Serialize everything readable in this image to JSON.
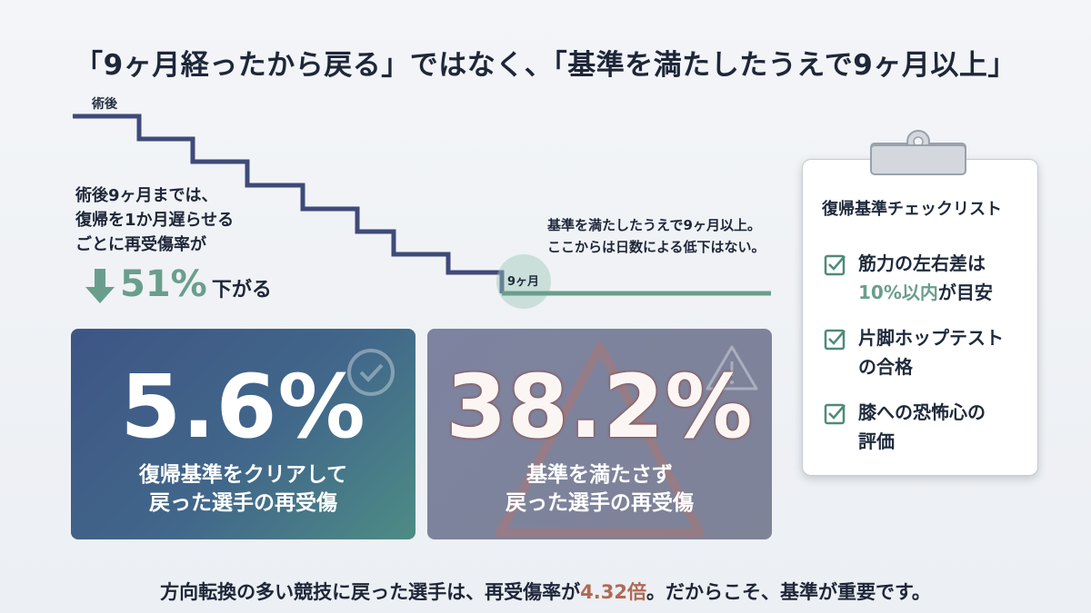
{
  "title": "「9ヶ月経ったから戻る」ではなく、「基準を満たしたうえで9ヶ月以上」",
  "timeline": {
    "start_label": "術後",
    "milestone_label": "9ヶ月"
  },
  "left_note": {
    "lines": [
      "術後9ヶ月までは、",
      "復帰を1か月遅らせる",
      "ごとに再受傷率が"
    ],
    "stat": "51%",
    "stat_suffix": "下がる"
  },
  "right_note": {
    "lines": [
      "基準を満たしたうえで9ヶ月以上。",
      "ここからは日数による低下はない。"
    ]
  },
  "cards": [
    {
      "value": "5.6%",
      "caption": [
        "復帰基準をクリアして",
        "戻った選手の再受傷"
      ]
    },
    {
      "value": "38.2%",
      "caption": [
        "基準を満たさず",
        "戻った選手の再受傷"
      ]
    }
  ],
  "checklist": {
    "title": "復帰基準チェックリスト",
    "items": [
      {
        "lines": [
          "筋力の左右差は"
        ],
        "highlight": "10%以内",
        "after": "が目安"
      },
      {
        "lines": [
          "片脚ホップテスト",
          "の合格"
        ]
      },
      {
        "lines": [
          "膝への恐怖心の",
          "評価"
        ]
      }
    ]
  },
  "footer": {
    "before": "方向転換の多い競技に戻った選手は、再受傷率が",
    "highlight": "4.32倍",
    "after": "。だからこそ、基準が重要です。"
  }
}
